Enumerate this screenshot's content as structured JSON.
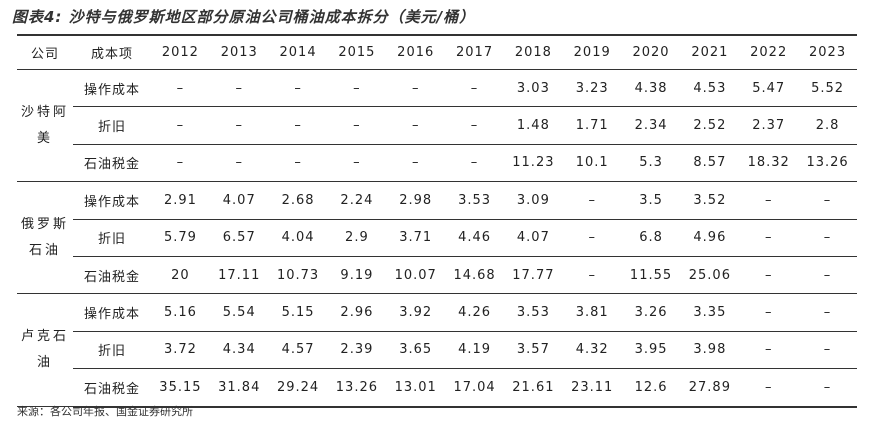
{
  "title": "图表4: 沙特与俄罗斯地区部分原油公司桶油成本拆分（美元/桶）",
  "table": {
    "header": [
      "公司",
      "成本项",
      "2012",
      "2013",
      "2014",
      "2015",
      "2016",
      "2017",
      "2018",
      "2019",
      "2020",
      "2021",
      "2022",
      "2023"
    ],
    "groups": [
      {
        "company": "沙特阿美",
        "rows": [
          {
            "item": "操作成本",
            "cells": [
              "–",
              "–",
              "–",
              "–",
              "–",
              "–",
              "3.03",
              "3.23",
              "4.38",
              "4.53",
              "5.47",
              "5.52"
            ]
          },
          {
            "item": "折旧",
            "cells": [
              "–",
              "–",
              "–",
              "–",
              "–",
              "–",
              "1.48",
              "1.71",
              "2.34",
              "2.52",
              "2.37",
              "2.8"
            ]
          },
          {
            "item": "石油税金",
            "cells": [
              "–",
              "–",
              "–",
              "–",
              "–",
              "–",
              "11.23",
              "10.1",
              "5.3",
              "8.57",
              "18.32",
              "13.26"
            ]
          }
        ]
      },
      {
        "company": "俄罗斯石油",
        "rows": [
          {
            "item": "操作成本",
            "cells": [
              "2.91",
              "4.07",
              "2.68",
              "2.24",
              "2.98",
              "3.53",
              "3.09",
              "–",
              "3.5",
              "3.52",
              "–",
              "–"
            ]
          },
          {
            "item": "折旧",
            "cells": [
              "5.79",
              "6.57",
              "4.04",
              "2.9",
              "3.71",
              "4.46",
              "4.07",
              "–",
              "6.8",
              "4.96",
              "–",
              "–"
            ]
          },
          {
            "item": "石油税金",
            "cells": [
              "20",
              "17.11",
              "10.73",
              "9.19",
              "10.07",
              "14.68",
              "17.77",
              "–",
              "11.55",
              "25.06",
              "–",
              "–"
            ]
          }
        ]
      },
      {
        "company": "卢克石油",
        "rows": [
          {
            "item": "操作成本",
            "cells": [
              "5.16",
              "5.54",
              "5.15",
              "2.96",
              "3.92",
              "4.26",
              "3.53",
              "3.81",
              "3.26",
              "3.35",
              "–",
              "–"
            ]
          },
          {
            "item": "折旧",
            "cells": [
              "3.72",
              "4.34",
              "4.57",
              "2.39",
              "3.65",
              "4.19",
              "3.57",
              "4.32",
              "3.95",
              "3.98",
              "–",
              "–"
            ]
          },
          {
            "item": "石油税金",
            "cells": [
              "35.15",
              "31.84",
              "29.24",
              "13.26",
              "13.01",
              "17.04",
              "21.61",
              "23.11",
              "12.6",
              "27.89",
              "–",
              "–"
            ]
          }
        ]
      }
    ]
  },
  "source": "来源：各公司年报、国金证券研究所"
}
